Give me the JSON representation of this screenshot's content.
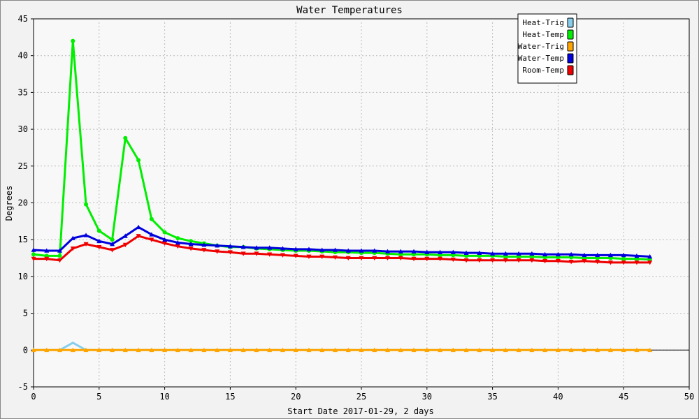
{
  "chart_data": {
    "type": "line",
    "title": "Water Temperatures",
    "xlabel": "Start Date 2017-01-29, 2 days",
    "ylabel": "Degrees",
    "xlim": [
      0,
      50
    ],
    "ylim": [
      -5,
      45
    ],
    "x_ticks": [
      "0",
      "5",
      "10",
      "15",
      "20",
      "25",
      "30",
      "35",
      "40",
      "45",
      "50"
    ],
    "y_ticks": [
      "-5",
      "0",
      "5",
      "10",
      "15",
      "20",
      "25",
      "30",
      "35",
      "40",
      "45"
    ],
    "grid": true,
    "legend_position": "top-right",
    "x": [
      0,
      1,
      2,
      3,
      4,
      5,
      6,
      7,
      8,
      9,
      10,
      11,
      12,
      13,
      14,
      15,
      16,
      17,
      18,
      19,
      20,
      21,
      22,
      23,
      24,
      25,
      26,
      27,
      28,
      29,
      30,
      31,
      32,
      33,
      34,
      35,
      36,
      37,
      38,
      39,
      40,
      41,
      42,
      43,
      44,
      45,
      46,
      47
    ],
    "series": [
      {
        "name": "Heat-Trig",
        "color": "#87ceeb",
        "marker": "none",
        "values": [
          0,
          0,
          0,
          1,
          0,
          0,
          0,
          0,
          0,
          0,
          0,
          0,
          0,
          0,
          0,
          0,
          0,
          0,
          0,
          0,
          0,
          0,
          0,
          0,
          0,
          0,
          0,
          0,
          0,
          0,
          0,
          0,
          0,
          0,
          0,
          0,
          0,
          0,
          0,
          0,
          0,
          0,
          0,
          0,
          0,
          0,
          0,
          0
        ]
      },
      {
        "name": "Heat-Temp",
        "color": "#00ee00",
        "marker": "circle",
        "values": [
          13.0,
          12.8,
          12.8,
          42.0,
          19.8,
          16.2,
          15.0,
          28.8,
          25.8,
          17.8,
          16.0,
          15.2,
          14.8,
          14.5,
          14.2,
          14.0,
          14.0,
          13.8,
          13.7,
          13.6,
          13.5,
          13.5,
          13.4,
          13.3,
          13.3,
          13.2,
          13.2,
          13.1,
          13.0,
          13.0,
          13.0,
          12.9,
          12.9,
          12.8,
          12.8,
          12.8,
          12.7,
          12.7,
          12.7,
          12.6,
          12.6,
          12.6,
          12.5,
          12.5,
          12.5,
          12.4,
          12.4,
          12.3
        ]
      },
      {
        "name": "Water-Trig",
        "color": "#ffa500",
        "marker": "triangle",
        "values": [
          0,
          0,
          0,
          0,
          0,
          0,
          0,
          0,
          0,
          0,
          0,
          0,
          0,
          0,
          0,
          0,
          0,
          0,
          0,
          0,
          0,
          0,
          0,
          0,
          0,
          0,
          0,
          0,
          0,
          0,
          0,
          0,
          0,
          0,
          0,
          0,
          0,
          0,
          0,
          0,
          0,
          0,
          0,
          0,
          0,
          0,
          0,
          0
        ]
      },
      {
        "name": "Water-Temp",
        "color": "#0000dd",
        "marker": "triangle",
        "values": [
          13.6,
          13.5,
          13.5,
          15.2,
          15.6,
          14.8,
          14.4,
          15.5,
          16.7,
          15.7,
          15.0,
          14.6,
          14.4,
          14.3,
          14.2,
          14.1,
          14.0,
          13.9,
          13.9,
          13.8,
          13.7,
          13.7,
          13.6,
          13.6,
          13.5,
          13.5,
          13.5,
          13.4,
          13.4,
          13.4,
          13.3,
          13.3,
          13.3,
          13.2,
          13.2,
          13.1,
          13.1,
          13.1,
          13.1,
          13.0,
          13.0,
          13.0,
          12.9,
          12.9,
          12.9,
          12.9,
          12.8,
          12.7
        ]
      },
      {
        "name": "Room-Temp",
        "color": "#ee0000",
        "marker": "triangle-down",
        "values": [
          12.4,
          12.4,
          12.2,
          13.8,
          14.4,
          14.0,
          13.6,
          14.3,
          15.5,
          15.0,
          14.5,
          14.1,
          13.8,
          13.6,
          13.4,
          13.3,
          13.1,
          13.1,
          13.0,
          12.9,
          12.8,
          12.7,
          12.7,
          12.6,
          12.5,
          12.5,
          12.5,
          12.5,
          12.5,
          12.4,
          12.4,
          12.4,
          12.3,
          12.2,
          12.2,
          12.2,
          12.2,
          12.2,
          12.2,
          12.1,
          12.1,
          12.0,
          12.1,
          12.0,
          11.9,
          11.9,
          11.9,
          11.9
        ]
      }
    ]
  }
}
